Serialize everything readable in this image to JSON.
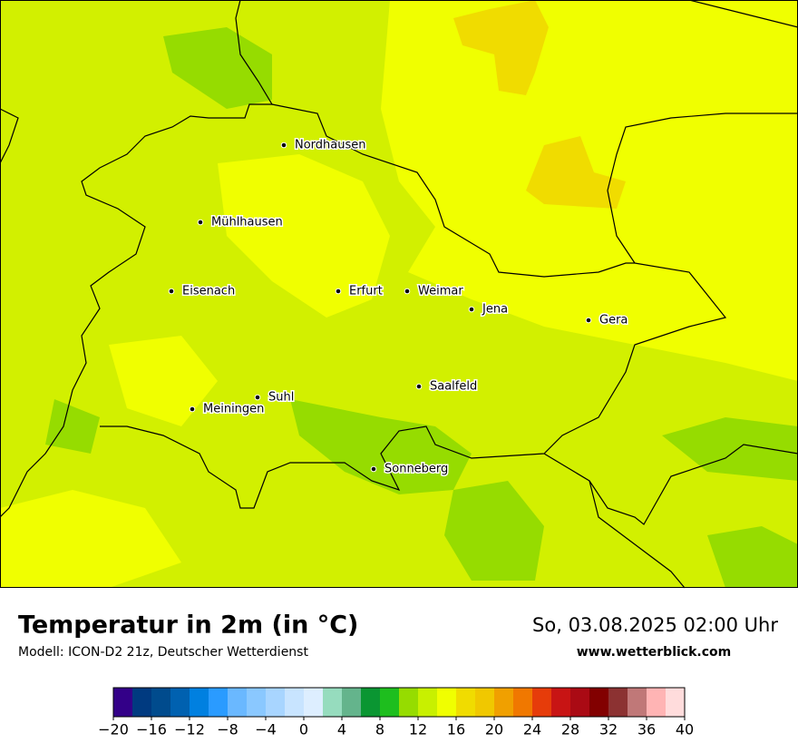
{
  "header": {
    "title": "Temperatur in 2m (in °C)",
    "model": "Modell: ICON-D2 21z, Deutscher Wetterdienst",
    "datetime": "So, 03.08.2025 02:00 Uhr",
    "website": "www.wetterblick.com"
  },
  "cities": [
    "Nordhausen",
    "Mühlhausen",
    "Eisenach",
    "Erfurt",
    "Weimar",
    "Jena",
    "Gera",
    "Saalfeld",
    "Suhl",
    "Meiningen",
    "Sonneberg"
  ],
  "colorbar": {
    "range": [
      -20,
      40
    ],
    "colors": [
      "#330088",
      "#003a80",
      "#004b8d",
      "#0061b0",
      "#0080e0",
      "#2a9bff",
      "#6ab8ff",
      "#8ac8ff",
      "#a8d5ff",
      "#c8e4ff",
      "#ddeeff",
      "#96dcbe",
      "#64b48c",
      "#0a9632",
      "#1ebe1e",
      "#96dc00",
      "#c8f000",
      "#f0ff00",
      "#f0dc00",
      "#f0c800",
      "#f0a000",
      "#f07800",
      "#e63c0a",
      "#c81414",
      "#aa0a14",
      "#820000",
      "#8c3232",
      "#c07878",
      "#ffb4b4",
      "#ffdcdc"
    ],
    "ticks": [
      {
        "value": -20,
        "label": "−20"
      },
      {
        "value": -16,
        "label": "−16"
      },
      {
        "value": -12,
        "label": "−12"
      },
      {
        "value": -8,
        "label": "−8"
      },
      {
        "value": -4,
        "label": "−4"
      },
      0,
      4,
      8,
      12,
      16,
      20,
      24,
      28,
      32,
      36,
      40
    ]
  }
}
